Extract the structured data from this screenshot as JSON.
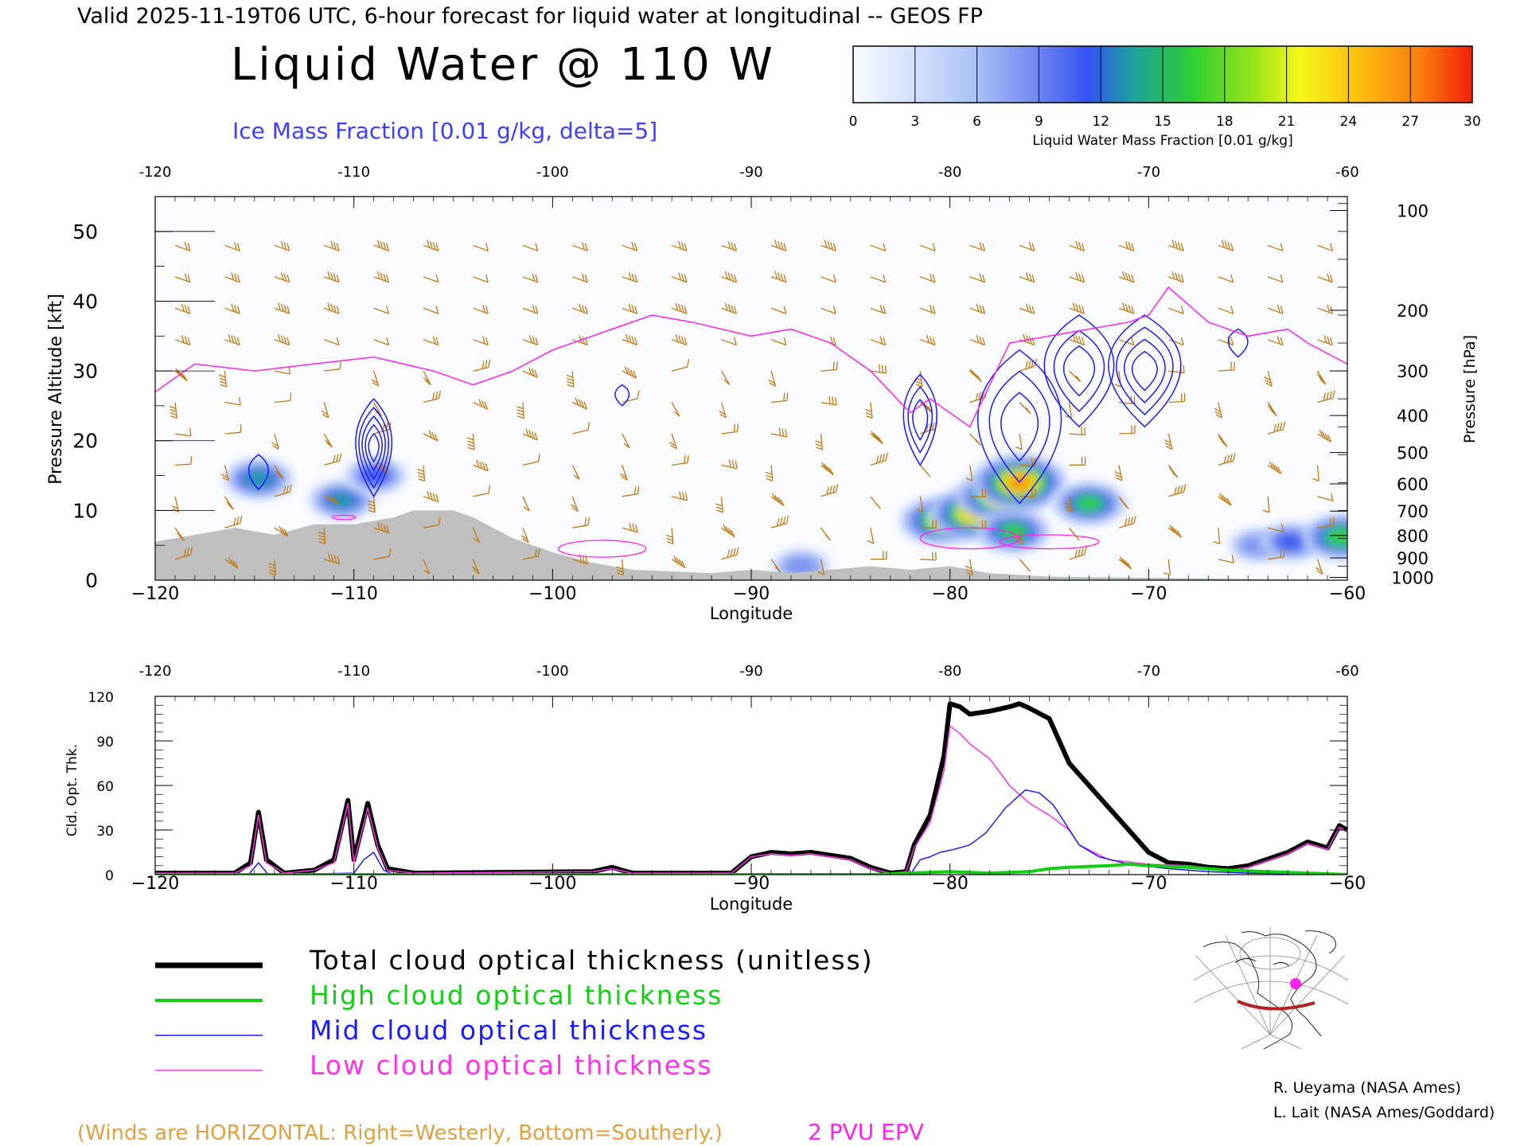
{
  "header": {
    "subtitle": "Valid 2025-11-19T06 UTC, 6-hour forecast for liquid water at longitudinal -- GEOS FP",
    "title": "Liquid Water @ 110 W",
    "ice_label": "Ice Mass Fraction [0.01 g/kg, delta=5]"
  },
  "colorbar": {
    "ticks": [
      "0",
      "3",
      "6",
      "9",
      "12",
      "15",
      "18",
      "21",
      "24",
      "27",
      "30"
    ],
    "label": "Liquid Water Mass Fraction [0.01 g/kg]",
    "colors": [
      "#f4f7ff",
      "#c9d8fb",
      "#a4bef6",
      "#7b93ef",
      "#3f5cf0",
      "#1ea0a8",
      "#35d13a",
      "#8fe31b",
      "#f0f51c",
      "#f9c310",
      "#f97c0e",
      "#f22a0c"
    ]
  },
  "main_chart": {
    "top_ticks": [
      "-120",
      "-110",
      "-100",
      "-90",
      "-80",
      "-70",
      "-60"
    ],
    "bottom_ticks": [
      "−120",
      "−110",
      "−100",
      "−90",
      "−80",
      "−70",
      "−60"
    ],
    "xlabel": "Longitude",
    "ylabel_left": "Pressure Altitude [kft]",
    "left_ticks": [
      "0",
      "10",
      "20",
      "30",
      "40",
      "50"
    ],
    "ylabel_right": "Pressure [hPa]",
    "right_ticks": [
      "100",
      "200",
      "300",
      "400",
      "500",
      "600",
      "700",
      "800",
      "900",
      "1000"
    ]
  },
  "chart_data": [
    {
      "type": "heatmap",
      "xlim": [
        -120,
        -60
      ],
      "ylim": [
        0,
        55
      ],
      "x_axis": "Longitude",
      "y_axis": "Pressure Altitude [kft]",
      "pressure_levels_hpa": [
        100,
        200,
        300,
        400,
        500,
        600,
        700,
        800,
        900,
        1000
      ],
      "pressure_level_kft": [
        53,
        38.7,
        30,
        23.6,
        18.3,
        13.8,
        9.9,
        6.4,
        3.2,
        0.4
      ],
      "liquid_water_blobs": [
        {
          "lon": -114.8,
          "kft": 14.5,
          "peak": 16
        },
        {
          "lon": -110.6,
          "kft": 11.5,
          "peak": 15
        },
        {
          "lon": -108.9,
          "kft": 15,
          "peak": 13
        },
        {
          "lon": -87.5,
          "kft": 2.0,
          "peak": 11
        },
        {
          "lon": -80.5,
          "kft": 8.5,
          "peak": 21
        },
        {
          "lon": -78.8,
          "kft": 9.5,
          "peak": 25
        },
        {
          "lon": -77.5,
          "kft": 12.0,
          "peak": 24
        },
        {
          "lon": -76.5,
          "kft": 14.0,
          "peak": 27
        },
        {
          "lon": -76.8,
          "kft": 7.0,
          "peak": 18
        },
        {
          "lon": -73.0,
          "kft": 11.0,
          "peak": 18
        },
        {
          "lon": -64.5,
          "kft": 5.0,
          "peak": 11
        },
        {
          "lon": -62.8,
          "kft": 5.5,
          "peak": 14
        },
        {
          "lon": -60.3,
          "kft": 6.2,
          "peak": 20
        }
      ],
      "terrain_kft": [
        [
          -120,
          5.5
        ],
        [
          -118,
          6.5
        ],
        [
          -116,
          7.5
        ],
        [
          -114,
          6.5
        ],
        [
          -112,
          8
        ],
        [
          -110,
          8
        ],
        [
          -108,
          9
        ],
        [
          -107,
          10
        ],
        [
          -105,
          10
        ],
        [
          -104,
          9
        ],
        [
          -102,
          6
        ],
        [
          -100,
          4
        ],
        [
          -98,
          2.5
        ],
        [
          -96,
          1.5
        ],
        [
          -92,
          1
        ],
        [
          -90,
          1.5
        ],
        [
          -88,
          1
        ],
        [
          -84,
          2
        ],
        [
          -82,
          1.5
        ],
        [
          -80,
          2
        ],
        [
          -78,
          1
        ],
        [
          -75,
          0.5
        ],
        [
          -60,
          0
        ]
      ],
      "epv_2pvu_kft": [
        [
          -120,
          27
        ],
        [
          -118,
          31
        ],
        [
          -115,
          30
        ],
        [
          -112,
          31
        ],
        [
          -109,
          32
        ],
        [
          -106,
          30
        ],
        [
          -104,
          28
        ],
        [
          -102,
          30
        ],
        [
          -100,
          33
        ],
        [
          -97,
          36
        ],
        [
          -95,
          38
        ],
        [
          -93,
          37
        ],
        [
          -90,
          35
        ],
        [
          -88,
          36
        ],
        [
          -86,
          34
        ],
        [
          -84,
          30
        ],
        [
          -82,
          24
        ],
        [
          -81,
          26
        ],
        [
          -80,
          24
        ],
        [
          -79,
          22
        ],
        [
          -78,
          28
        ],
        [
          -77,
          34
        ],
        [
          -75,
          35
        ],
        [
          -73,
          36
        ],
        [
          -71,
          37
        ],
        [
          -70,
          38
        ],
        [
          -69,
          42
        ],
        [
          -67,
          37
        ],
        [
          -65,
          35
        ],
        [
          -63,
          36
        ],
        [
          -62,
          34
        ],
        [
          -60,
          31
        ]
      ],
      "ice_contours": [
        {
          "lon": -114.8,
          "kft": 15.5,
          "rx": 0.7,
          "ry": 2.5,
          "levels": 1
        },
        {
          "lon": -109.0,
          "kft": 19.0,
          "rx": 1.3,
          "ry": 7,
          "levels": 5
        },
        {
          "lon": -96.5,
          "kft": 26.5,
          "rx": 0.5,
          "ry": 1.5,
          "levels": 1
        },
        {
          "lon": -81.5,
          "kft": 23.0,
          "rx": 1.2,
          "ry": 6.5,
          "levels": 3
        },
        {
          "lon": -76.5,
          "kft": 22.0,
          "rx": 3.0,
          "ry": 11,
          "levels": 3
        },
        {
          "lon": -73.5,
          "kft": 30.0,
          "rx": 2.5,
          "ry": 8,
          "levels": 3
        },
        {
          "lon": -70.2,
          "kft": 30.0,
          "rx": 2.6,
          "ry": 8,
          "levels": 4
        },
        {
          "lon": -65.5,
          "kft": 34.0,
          "rx": 0.7,
          "ry": 2,
          "levels": 1
        }
      ]
    },
    {
      "type": "line",
      "xlim": [
        -120,
        -60
      ],
      "ylim": [
        0,
        120
      ],
      "yticks": [
        "0",
        "30",
        "60",
        "90",
        "120"
      ],
      "ylabel": "Cld. Opt. Thk.",
      "xlabel": "Longitude",
      "series": [
        {
          "name": "Total cloud optical thickness (unitless)",
          "color": "#000000",
          "points": [
            [
              -120,
              1
            ],
            [
              -116,
              1
            ],
            [
              -115.2,
              8
            ],
            [
              -114.8,
              42
            ],
            [
              -114.4,
              10
            ],
            [
              -113.5,
              1
            ],
            [
              -112,
              3
            ],
            [
              -111,
              10
            ],
            [
              -110.3,
              50
            ],
            [
              -110,
              10
            ],
            [
              -109.3,
              48
            ],
            [
              -108.8,
              20
            ],
            [
              -108.3,
              4
            ],
            [
              -107,
              1
            ],
            [
              -98,
              2
            ],
            [
              -97,
              5
            ],
            [
              -96,
              1
            ],
            [
              -91,
              1
            ],
            [
              -90,
              12
            ],
            [
              -89,
              15
            ],
            [
              -88,
              14
            ],
            [
              -87,
              15
            ],
            [
              -86,
              13
            ],
            [
              -85,
              11
            ],
            [
              -84,
              5
            ],
            [
              -83,
              1
            ],
            [
              -82.2,
              2
            ],
            [
              -81.8,
              20
            ],
            [
              -81,
              40
            ],
            [
              -80.3,
              80
            ],
            [
              -80,
              115
            ],
            [
              -79.5,
              113
            ],
            [
              -79,
              108
            ],
            [
              -78,
              110
            ],
            [
              -77,
              113
            ],
            [
              -76.5,
              115
            ],
            [
              -76,
              112
            ],
            [
              -75,
              105
            ],
            [
              -74,
              75
            ],
            [
              -72,
              45
            ],
            [
              -71,
              30
            ],
            [
              -70,
              15
            ],
            [
              -69,
              8
            ],
            [
              -68,
              7
            ],
            [
              -67,
              5
            ],
            [
              -66,
              4
            ],
            [
              -65,
              6
            ],
            [
              -63,
              15
            ],
            [
              -62,
              22
            ],
            [
              -61,
              18
            ],
            [
              -60.4,
              33
            ],
            [
              -60,
              30
            ]
          ]
        },
        {
          "name": "High cloud optical thickness",
          "color": "#10d010",
          "points": [
            [
              -120,
              0
            ],
            [
              -84,
              0
            ],
            [
              -82,
              1
            ],
            [
              -80,
              2
            ],
            [
              -78,
              1
            ],
            [
              -76,
              2
            ],
            [
              -75,
              4
            ],
            [
              -74,
              5
            ],
            [
              -72,
              6
            ],
            [
              -71,
              7
            ],
            [
              -70,
              6
            ],
            [
              -68,
              5
            ],
            [
              -66,
              3
            ],
            [
              -64,
              2
            ],
            [
              -62,
              1
            ],
            [
              -60,
              0
            ]
          ]
        },
        {
          "name": "Mid cloud optical thickness",
          "color": "#1a1aff",
          "points": [
            [
              -120,
              0
            ],
            [
              -115.3,
              0
            ],
            [
              -114.8,
              8
            ],
            [
              -114.3,
              0
            ],
            [
              -110,
              1
            ],
            [
              -109.5,
              10
            ],
            [
              -109,
              15
            ],
            [
              -108.5,
              3
            ],
            [
              -108,
              0
            ],
            [
              -82,
              0
            ],
            [
              -81.5,
              10
            ],
            [
              -81,
              12
            ],
            [
              -80.5,
              15
            ],
            [
              -79.8,
              17
            ],
            [
              -79,
              20
            ],
            [
              -78.2,
              28
            ],
            [
              -77.2,
              45
            ],
            [
              -76.2,
              57
            ],
            [
              -75.5,
              55
            ],
            [
              -74.8,
              47
            ],
            [
              -73.5,
              20
            ],
            [
              -72.5,
              12
            ],
            [
              -71,
              7
            ],
            [
              -69,
              4
            ],
            [
              -67,
              2
            ],
            [
              -65,
              1
            ],
            [
              -60,
              0
            ]
          ]
        },
        {
          "name": "Low cloud optical thickness",
          "color": "#ff30e8",
          "points": [
            [
              -120,
              1
            ],
            [
              -116,
              1
            ],
            [
              -115.2,
              6
            ],
            [
              -114.8,
              40
            ],
            [
              -114.4,
              8
            ],
            [
              -113.5,
              1
            ],
            [
              -112,
              3
            ],
            [
              -111,
              8
            ],
            [
              -110.3,
              48
            ],
            [
              -110,
              8
            ],
            [
              -109.3,
              45
            ],
            [
              -108.8,
              18
            ],
            [
              -108.3,
              3
            ],
            [
              -107,
              1
            ],
            [
              -98,
              2
            ],
            [
              -97,
              4
            ],
            [
              -96,
              1
            ],
            [
              -91,
              1
            ],
            [
              -90,
              12
            ],
            [
              -89,
              14
            ],
            [
              -88,
              13
            ],
            [
              -87,
              14
            ],
            [
              -86,
              12
            ],
            [
              -85,
              10
            ],
            [
              -84,
              4
            ],
            [
              -83,
              1
            ],
            [
              -82.2,
              2
            ],
            [
              -81.8,
              18
            ],
            [
              -81,
              35
            ],
            [
              -80.3,
              70
            ],
            [
              -80,
              100
            ],
            [
              -79.5,
              95
            ],
            [
              -79,
              88
            ],
            [
              -78,
              78
            ],
            [
              -77,
              60
            ],
            [
              -76,
              48
            ],
            [
              -75,
              40
            ],
            [
              -74,
              30
            ],
            [
              -73.5,
              20
            ],
            [
              -72,
              10
            ],
            [
              -70,
              7
            ],
            [
              -68,
              6
            ],
            [
              -66,
              3
            ],
            [
              -65,
              5
            ],
            [
              -63,
              14
            ],
            [
              -62,
              21
            ],
            [
              -61,
              17
            ],
            [
              -60.4,
              32
            ],
            [
              -60,
              29
            ]
          ]
        }
      ]
    }
  ],
  "legend": {
    "items": [
      {
        "label": "Total cloud optical thickness (unitless)",
        "color": "#000000"
      },
      {
        "label": "High cloud optical thickness",
        "color": "#10d010"
      },
      {
        "label": "Mid cloud optical thickness",
        "color": "#1a1aff"
      },
      {
        "label": "Low cloud optical thickness",
        "color": "#ff30e8"
      }
    ]
  },
  "footer": {
    "winds_note": "(Winds are HORIZONTAL: Right=Westerly, Bottom=Southerly.)",
    "epv_label": "2 PVU EPV",
    "credit1": "R. Ueyama (NASA Ames)",
    "credit2": "L. Lait (NASA Ames/Goddard)"
  }
}
